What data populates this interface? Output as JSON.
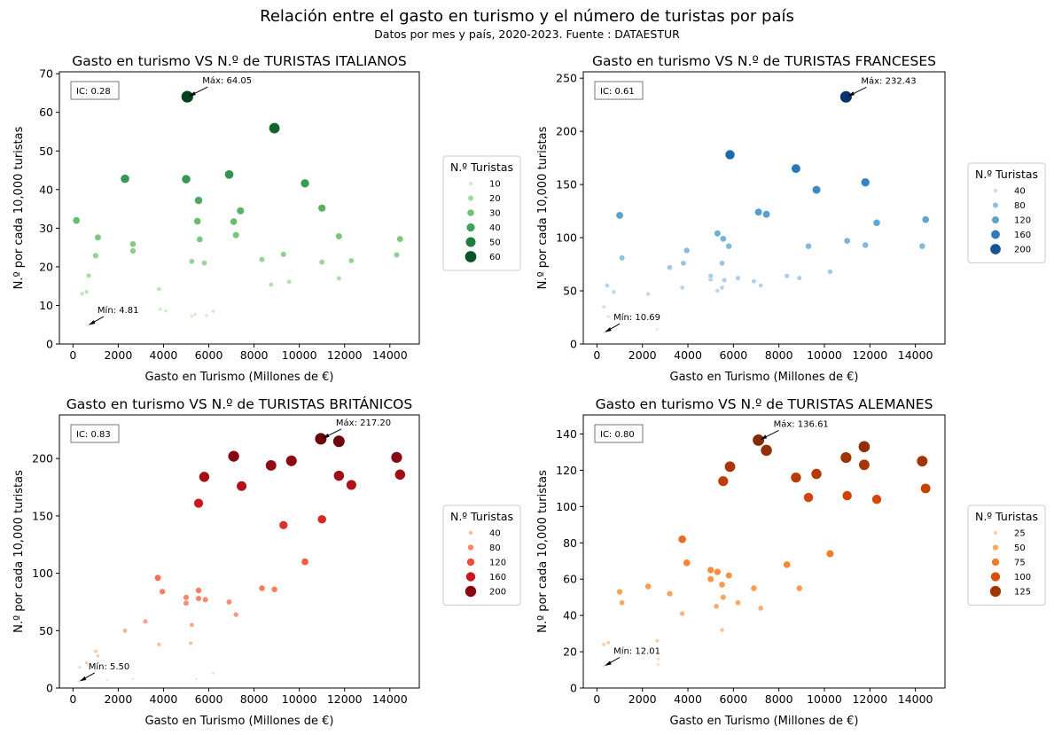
{
  "figure": {
    "title": "Relación entre el gasto en turismo y el número de turistas por país",
    "subtitle": "Datos por mes y país, 2020-2023. Fuente : DATAESTUR"
  },
  "chart_data": [
    {
      "type": "scatter",
      "title": "Gasto en turismo VS N.º de TURISTAS ITALIANOS",
      "xlabel": "Gasto en Turismo (Millones de €)",
      "ylabel": "N.º por cada 10,000 turistas",
      "xlim": [
        -600,
        15300
      ],
      "ylim": [
        0,
        70.5
      ],
      "xticks": [
        0,
        2000,
        4000,
        6000,
        8000,
        10000,
        12000,
        14000
      ],
      "yticks": [
        0,
        10,
        20,
        30,
        40,
        50,
        60,
        70
      ],
      "ic_label": "IC: 0.28",
      "max_label": "Máx: 64.05",
      "min_label": "Mín: 4.81",
      "max_point": [
        5050,
        64.05
      ],
      "min_point": [
        650,
        4.81
      ],
      "color_scale": [
        "#f7fcf5",
        "#c7e9c0",
        "#74c476",
        "#238b45",
        "#00441b"
      ],
      "size_range": [
        0,
        64
      ],
      "legend_title": "N.º Turistas",
      "legend": [
        10,
        20,
        30,
        40,
        50,
        60
      ],
      "points": [
        {
          "x": 5050,
          "y": 64.05
        },
        {
          "x": 8900,
          "y": 55.9
        },
        {
          "x": 2300,
          "y": 42.8
        },
        {
          "x": 5000,
          "y": 42.7
        },
        {
          "x": 6900,
          "y": 43.9
        },
        {
          "x": 10250,
          "y": 41.6
        },
        {
          "x": 5550,
          "y": 37.2
        },
        {
          "x": 11000,
          "y": 35.2
        },
        {
          "x": 7400,
          "y": 34.5
        },
        {
          "x": 150,
          "y": 32.0
        },
        {
          "x": 5500,
          "y": 31.8
        },
        {
          "x": 7100,
          "y": 31.7
        },
        {
          "x": 7200,
          "y": 28.2
        },
        {
          "x": 1100,
          "y": 27.6
        },
        {
          "x": 5600,
          "y": 27.1
        },
        {
          "x": 11750,
          "y": 27.9
        },
        {
          "x": 14450,
          "y": 27.2
        },
        {
          "x": 2650,
          "y": 25.9
        },
        {
          "x": 2650,
          "y": 24.1
        },
        {
          "x": 1000,
          "y": 22.9
        },
        {
          "x": 9300,
          "y": 23.2
        },
        {
          "x": 14300,
          "y": 23.1
        },
        {
          "x": 8350,
          "y": 21.9
        },
        {
          "x": 12300,
          "y": 21.6
        },
        {
          "x": 5250,
          "y": 21.4
        },
        {
          "x": 5800,
          "y": 21.0
        },
        {
          "x": 11000,
          "y": 21.2
        },
        {
          "x": 700,
          "y": 17.7
        },
        {
          "x": 11750,
          "y": 17.0
        },
        {
          "x": 9550,
          "y": 16.1
        },
        {
          "x": 8750,
          "y": 15.4
        },
        {
          "x": 3800,
          "y": 14.2
        },
        {
          "x": 600,
          "y": 13.5
        },
        {
          "x": 400,
          "y": 13.0
        },
        {
          "x": 3850,
          "y": 9.0
        },
        {
          "x": 4100,
          "y": 8.6
        },
        {
          "x": 6200,
          "y": 8.5
        },
        {
          "x": 5400,
          "y": 7.7
        },
        {
          "x": 5250,
          "y": 7.2
        },
        {
          "x": 5900,
          "y": 7.4
        },
        {
          "x": 650,
          "y": 4.81
        }
      ]
    },
    {
      "type": "scatter",
      "title": "Gasto en turismo VS N.º de TURISTAS FRANCESES",
      "xlabel": "Gasto en Turismo (Millones de €)",
      "ylabel": "N.º por cada 10,000 turistas",
      "xlim": [
        -600,
        15300
      ],
      "ylim": [
        0,
        256
      ],
      "xticks": [
        0,
        2000,
        4000,
        6000,
        8000,
        10000,
        12000,
        14000
      ],
      "yticks": [
        0,
        50,
        100,
        150,
        200,
        250
      ],
      "ic_label": "IC: 0.61",
      "max_label": "Máx: 232.43",
      "min_label": "Mín: 10.69",
      "max_point": [
        10950,
        232.43
      ],
      "min_point": [
        300,
        10.69
      ],
      "color_scale": [
        "#f7fbff",
        "#c6dbef",
        "#6baed6",
        "#2171b5",
        "#08306b"
      ],
      "size_range": [
        0,
        235
      ],
      "legend_title": "N.º Turistas",
      "legend": [
        40,
        80,
        120,
        160,
        200
      ],
      "points": [
        {
          "x": 10950,
          "y": 232.43
        },
        {
          "x": 5850,
          "y": 178
        },
        {
          "x": 8750,
          "y": 165
        },
        {
          "x": 11800,
          "y": 152
        },
        {
          "x": 9650,
          "y": 145
        },
        {
          "x": 7100,
          "y": 124
        },
        {
          "x": 7450,
          "y": 122
        },
        {
          "x": 1000,
          "y": 121
        },
        {
          "x": 14450,
          "y": 117
        },
        {
          "x": 12300,
          "y": 114
        },
        {
          "x": 5300,
          "y": 104
        },
        {
          "x": 5550,
          "y": 99
        },
        {
          "x": 11000,
          "y": 97
        },
        {
          "x": 11800,
          "y": 93
        },
        {
          "x": 9300,
          "y": 92
        },
        {
          "x": 14300,
          "y": 92
        },
        {
          "x": 5800,
          "y": 92
        },
        {
          "x": 3950,
          "y": 88
        },
        {
          "x": 1100,
          "y": 81
        },
        {
          "x": 3800,
          "y": 76
        },
        {
          "x": 5500,
          "y": 76
        },
        {
          "x": 3200,
          "y": 72
        },
        {
          "x": 10250,
          "y": 68
        },
        {
          "x": 8350,
          "y": 64
        },
        {
          "x": 5000,
          "y": 64
        },
        {
          "x": 6200,
          "y": 62
        },
        {
          "x": 8900,
          "y": 62
        },
        {
          "x": 5000,
          "y": 61
        },
        {
          "x": 5600,
          "y": 60
        },
        {
          "x": 6900,
          "y": 59
        },
        {
          "x": 7200,
          "y": 55
        },
        {
          "x": 3750,
          "y": 53
        },
        {
          "x": 5500,
          "y": 53
        },
        {
          "x": 450,
          "y": 55
        },
        {
          "x": 5300,
          "y": 50
        },
        {
          "x": 750,
          "y": 49
        },
        {
          "x": 2250,
          "y": 47
        },
        {
          "x": 300,
          "y": 35
        },
        {
          "x": 500,
          "y": 26
        },
        {
          "x": 2650,
          "y": 14
        },
        {
          "x": 300,
          "y": 10.69
        }
      ]
    },
    {
      "type": "scatter",
      "title": "Gasto en turismo VS N.º de TURISTAS BRITÁNICOS",
      "xlabel": "Gasto en Turismo (Millones de €)",
      "ylabel": "N.º por cada 10,000 turistas",
      "xlim": [
        -600,
        15300
      ],
      "ylim": [
        0,
        238
      ],
      "xticks": [
        0,
        2000,
        4000,
        6000,
        8000,
        10000,
        12000,
        14000
      ],
      "yticks": [
        0,
        50,
        100,
        150,
        200
      ],
      "ic_label": "IC: 0.83",
      "max_label": "Máx: 217.20",
      "min_label": "Mín: 5.50",
      "max_point": [
        10950,
        217.2
      ],
      "min_point": [
        250,
        5.5
      ],
      "color_scale": [
        "#fff5f0",
        "#fcbba1",
        "#fb6a4a",
        "#cb181d",
        "#67000d"
      ],
      "size_range": [
        0,
        220
      ],
      "legend_title": "N.º Turistas",
      "legend": [
        40,
        80,
        120,
        160,
        200
      ],
      "points": [
        {
          "x": 10950,
          "y": 217.2
        },
        {
          "x": 11750,
          "y": 215
        },
        {
          "x": 7100,
          "y": 202
        },
        {
          "x": 14300,
          "y": 201
        },
        {
          "x": 9650,
          "y": 198
        },
        {
          "x": 8750,
          "y": 194
        },
        {
          "x": 14450,
          "y": 186
        },
        {
          "x": 11750,
          "y": 185
        },
        {
          "x": 5800,
          "y": 184
        },
        {
          "x": 12300,
          "y": 177
        },
        {
          "x": 7450,
          "y": 176
        },
        {
          "x": 5550,
          "y": 161
        },
        {
          "x": 11000,
          "y": 147
        },
        {
          "x": 9300,
          "y": 142
        },
        {
          "x": 10250,
          "y": 110
        },
        {
          "x": 3750,
          "y": 96
        },
        {
          "x": 3950,
          "y": 84
        },
        {
          "x": 8350,
          "y": 87
        },
        {
          "x": 8900,
          "y": 86
        },
        {
          "x": 5550,
          "y": 85
        },
        {
          "x": 5000,
          "y": 79
        },
        {
          "x": 5550,
          "y": 78
        },
        {
          "x": 5850,
          "y": 77
        },
        {
          "x": 6900,
          "y": 75
        },
        {
          "x": 5000,
          "y": 74
        },
        {
          "x": 7200,
          "y": 64
        },
        {
          "x": 3200,
          "y": 58
        },
        {
          "x": 5250,
          "y": 55
        },
        {
          "x": 2300,
          "y": 50
        },
        {
          "x": 5200,
          "y": 39
        },
        {
          "x": 3800,
          "y": 38
        },
        {
          "x": 1000,
          "y": 32
        },
        {
          "x": 1100,
          "y": 28
        },
        {
          "x": 600,
          "y": 22
        },
        {
          "x": 300,
          "y": 18
        },
        {
          "x": 6200,
          "y": 13
        },
        {
          "x": 5450,
          "y": 8
        },
        {
          "x": 2650,
          "y": 8
        },
        {
          "x": 1500,
          "y": 7
        },
        {
          "x": 250,
          "y": 5.5
        }
      ]
    },
    {
      "type": "scatter",
      "title": "Gasto en turismo VS N.º de TURISTAS ALEMANES",
      "xlabel": "Gasto en Turismo (Millones de €)",
      "ylabel": "N.º por cada 10,000 turistas",
      "xlim": [
        -600,
        15300
      ],
      "ylim": [
        0,
        150.5
      ],
      "xticks": [
        0,
        2000,
        4000,
        6000,
        8000,
        10000,
        12000,
        14000
      ],
      "yticks": [
        0,
        20,
        40,
        60,
        80,
        100,
        120,
        140
      ],
      "ic_label": "IC: 0.80",
      "max_label": "Máx: 136.61",
      "min_label": "Mín: 12.01",
      "max_point": [
        7100,
        136.61
      ],
      "min_point": [
        300,
        12.01
      ],
      "color_scale": [
        "#fff5eb",
        "#fdd0a2",
        "#fd8d3c",
        "#d94801",
        "#7f2704"
      ],
      "size_range": [
        0,
        140
      ],
      "legend_title": "N.º Turistas",
      "legend": [
        25,
        50,
        75,
        100,
        125
      ],
      "points": [
        {
          "x": 7100,
          "y": 136.61
        },
        {
          "x": 11750,
          "y": 133
        },
        {
          "x": 7450,
          "y": 131
        },
        {
          "x": 10950,
          "y": 127
        },
        {
          "x": 14300,
          "y": 125
        },
        {
          "x": 11750,
          "y": 123
        },
        {
          "x": 5850,
          "y": 122
        },
        {
          "x": 9650,
          "y": 118
        },
        {
          "x": 8750,
          "y": 116
        },
        {
          "x": 5550,
          "y": 114
        },
        {
          "x": 14450,
          "y": 110
        },
        {
          "x": 11000,
          "y": 106
        },
        {
          "x": 9300,
          "y": 105
        },
        {
          "x": 12300,
          "y": 104
        },
        {
          "x": 3750,
          "y": 82
        },
        {
          "x": 10250,
          "y": 74
        },
        {
          "x": 3950,
          "y": 69
        },
        {
          "x": 8350,
          "y": 68
        },
        {
          "x": 5000,
          "y": 65
        },
        {
          "x": 5300,
          "y": 64
        },
        {
          "x": 5800,
          "y": 62
        },
        {
          "x": 5000,
          "y": 60
        },
        {
          "x": 5500,
          "y": 57
        },
        {
          "x": 2250,
          "y": 56
        },
        {
          "x": 6900,
          "y": 55
        },
        {
          "x": 8900,
          "y": 55
        },
        {
          "x": 1000,
          "y": 53
        },
        {
          "x": 3200,
          "y": 52
        },
        {
          "x": 5550,
          "y": 50
        },
        {
          "x": 6200,
          "y": 47
        },
        {
          "x": 1100,
          "y": 47
        },
        {
          "x": 5250,
          "y": 45
        },
        {
          "x": 7200,
          "y": 44
        },
        {
          "x": 3750,
          "y": 41
        },
        {
          "x": 5500,
          "y": 32
        },
        {
          "x": 2650,
          "y": 26
        },
        {
          "x": 500,
          "y": 25
        },
        {
          "x": 300,
          "y": 24
        },
        {
          "x": 2700,
          "y": 16
        },
        {
          "x": 2700,
          "y": 13
        },
        {
          "x": 300,
          "y": 12.01
        }
      ]
    }
  ]
}
